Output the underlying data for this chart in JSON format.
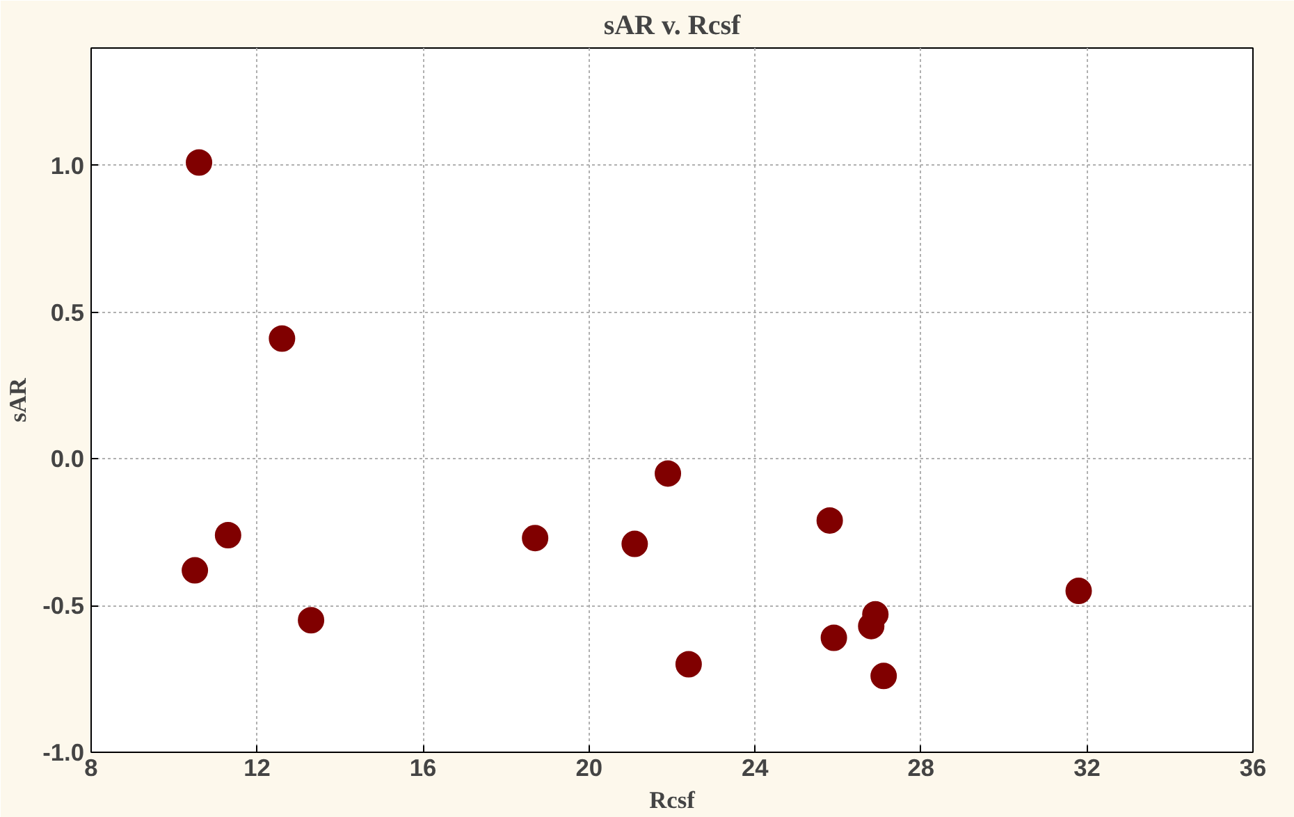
{
  "chart_data": {
    "type": "scatter",
    "title": "sAR v. Rcsf",
    "xlabel": "Rcsf",
    "ylabel": "sAR",
    "x": [
      10.6,
      12.6,
      21.9,
      25.8,
      11.3,
      18.7,
      21.1,
      10.5,
      31.8,
      26.9,
      26.8,
      13.3,
      25.9,
      22.4,
      27.1
    ],
    "series": [
      {
        "color": "#800000",
        "values": [
          1.01,
          0.41,
          -0.05,
          -0.21,
          -0.26,
          -0.27,
          -0.29,
          -0.38,
          -0.45,
          -0.53,
          -0.57,
          -0.55,
          -0.61,
          -0.7,
          -0.74
        ]
      }
    ],
    "xlim": [
      8,
      36
    ],
    "ylim": [
      -1.0,
      1.4
    ],
    "xticks": [
      8,
      12,
      16,
      20,
      24,
      28,
      32,
      36
    ],
    "yticks": [
      {
        "value": -1.0,
        "label": "-1.0"
      },
      {
        "value": -0.5,
        "label": "-0.5"
      },
      {
        "value": 0,
        "label": "0.0"
      },
      {
        "value": 0.5,
        "label": "0.5"
      },
      {
        "value": 1.0,
        "label": "1.0"
      }
    ],
    "grid": true,
    "marker": "circle"
  }
}
